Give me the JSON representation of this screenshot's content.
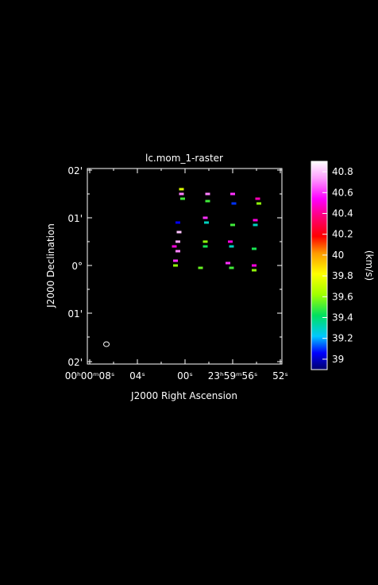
{
  "plot": {
    "title": "lc.mom_1-raster",
    "xlabel": "J2000 Right Ascension",
    "ylabel": "J2000 Declination",
    "xticks": [
      "00ʰ00ᵐ08ˢ",
      "04ˢ",
      "00ˢ",
      "23ʰ59ᵐ56ˢ",
      "52ˢ"
    ],
    "yticks": [
      "02'",
      "01'",
      "0°",
      "01'",
      "02'"
    ]
  },
  "colorbar": {
    "label": "(km/s)",
    "ticks": [
      "40.8",
      "40.6",
      "40.4",
      "40.2",
      "40",
      "39.8",
      "39.6",
      "39.4",
      "39.2",
      "39"
    ]
  },
  "colors": {
    "background": "#000000",
    "foreground": "#ffffff"
  },
  "chart_data": {
    "type": "heatmap",
    "title": "lc.mom_1-raster",
    "xlabel": "J2000 Right Ascension",
    "ylabel": "J2000 Declination",
    "colorbar_label": "(km/s)",
    "colorbar_range": [
      38.9,
      40.9
    ],
    "grid": false,
    "pixels": [
      {
        "ra_s": 0.3,
        "dec_arcmin": 1.6,
        "v": 39.75
      },
      {
        "ra_s": 0.3,
        "dec_arcmin": 1.5,
        "v": 40.7
      },
      {
        "ra_s": 0.2,
        "dec_arcmin": 1.4,
        "v": 39.5
      },
      {
        "ra_s": 0.6,
        "dec_arcmin": 0.9,
        "v": 39.05
      },
      {
        "ra_s": 0.5,
        "dec_arcmin": 0.7,
        "v": 40.8
      },
      {
        "ra_s": 0.6,
        "dec_arcmin": 0.5,
        "v": 40.75
      },
      {
        "ra_s": 0.9,
        "dec_arcmin": 0.4,
        "v": 40.5
      },
      {
        "ra_s": 0.6,
        "dec_arcmin": 0.3,
        "v": 40.7
      },
      {
        "ra_s": 0.8,
        "dec_arcmin": 0.1,
        "v": 40.6
      },
      {
        "ra_s": 0.8,
        "dec_arcmin": 0.0,
        "v": 39.6
      },
      {
        "ra_s": -1.9,
        "dec_arcmin": 1.5,
        "v": 40.7
      },
      {
        "ra_s": -1.9,
        "dec_arcmin": 1.35,
        "v": 39.5
      },
      {
        "ra_s": -1.7,
        "dec_arcmin": 1.0,
        "v": 40.6
      },
      {
        "ra_s": -1.8,
        "dec_arcmin": 0.9,
        "v": 39.3
      },
      {
        "ra_s": -1.7,
        "dec_arcmin": 0.5,
        "v": 39.6
      },
      {
        "ra_s": -1.7,
        "dec_arcmin": 0.4,
        "v": 39.45
      },
      {
        "ra_s": -1.3,
        "dec_arcmin": -0.05,
        "v": 39.55
      },
      {
        "ra_s": -4.0,
        "dec_arcmin": 1.5,
        "v": 40.6
      },
      {
        "ra_s": -4.1,
        "dec_arcmin": 1.3,
        "v": 39.1
      },
      {
        "ra_s": -4.0,
        "dec_arcmin": 0.85,
        "v": 39.5
      },
      {
        "ra_s": -3.8,
        "dec_arcmin": 0.5,
        "v": 40.5
      },
      {
        "ra_s": -3.9,
        "dec_arcmin": 0.4,
        "v": 39.3
      },
      {
        "ra_s": -3.6,
        "dec_arcmin": 0.05,
        "v": 40.6
      },
      {
        "ra_s": -3.9,
        "dec_arcmin": -0.05,
        "v": 39.5
      },
      {
        "ra_s": -6.1,
        "dec_arcmin": 1.4,
        "v": 40.45
      },
      {
        "ra_s": -6.2,
        "dec_arcmin": 1.3,
        "v": 39.6
      },
      {
        "ra_s": -5.9,
        "dec_arcmin": 0.95,
        "v": 40.5
      },
      {
        "ra_s": -5.9,
        "dec_arcmin": 0.85,
        "v": 39.3
      },
      {
        "ra_s": -5.8,
        "dec_arcmin": 0.35,
        "v": 39.45
      },
      {
        "ra_s": -5.8,
        "dec_arcmin": 0.0,
        "v": 40.5
      },
      {
        "ra_s": -5.8,
        "dec_arcmin": -0.1,
        "v": 39.6
      }
    ]
  }
}
